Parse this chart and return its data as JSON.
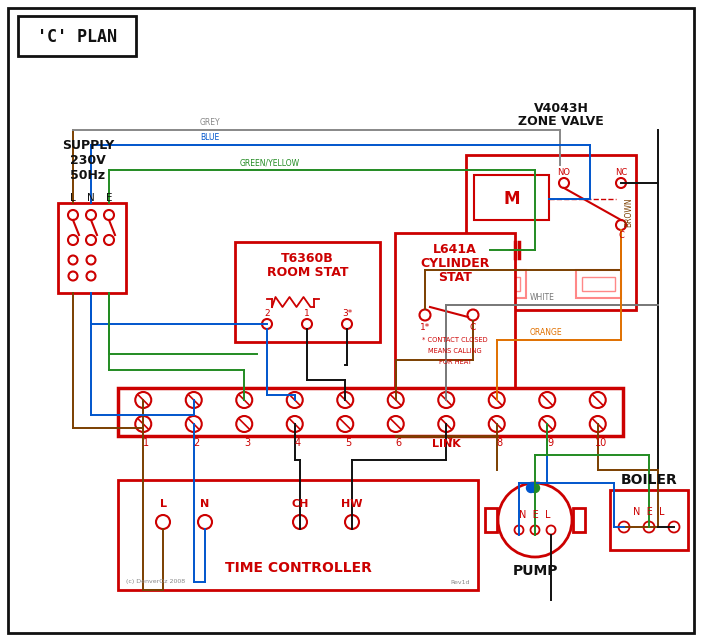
{
  "title": "'C' PLAN",
  "bg_color": "#ffffff",
  "red": "#cc0000",
  "pink_red": "#ff8888",
  "grey_wire": "#888888",
  "blue_wire": "#0055cc",
  "green_wire": "#228B22",
  "brown_wire": "#7B3F00",
  "black_wire": "#111111",
  "white_wire": "#777777",
  "orange_wire": "#E07000",
  "supply_label": "SUPPLY\n230V\n50Hz",
  "zone_valve_label1": "V4043H",
  "zone_valve_label2": "ZONE VALVE",
  "room_stat_label1": "T6360B",
  "room_stat_label2": "ROOM STAT",
  "cylinder_stat_label1": "L641A",
  "cylinder_stat_label2": "CYLINDER",
  "cylinder_stat_label3": "STAT",
  "terminal_numbers": [
    "1",
    "2",
    "3",
    "4",
    "5",
    "6",
    "7",
    "8",
    "9",
    "10"
  ],
  "time_controller_label": "TIME CONTROLLER",
  "tc_terminals": [
    "L",
    "N",
    "CH",
    "HW"
  ],
  "pump_label": "PUMP",
  "boiler_label": "BOILER",
  "nel_label": "N  E  L",
  "footnote1": "* CONTACT CLOSED",
  "footnote2": "MEANS CALLING",
  "footnote3": "FOR HEAT",
  "link_label": "LINK",
  "grey_label": "GREY",
  "blue_label": "BLUE",
  "gy_label": "GREEN/YELLOW",
  "brown_label": "BROWN",
  "white_label": "WHITE",
  "orange_label": "ORANGE",
  "copyright": "(c) DenverOz 2008",
  "revision": "Rev1d",
  "lne_labels": [
    "L",
    "N",
    "E"
  ]
}
